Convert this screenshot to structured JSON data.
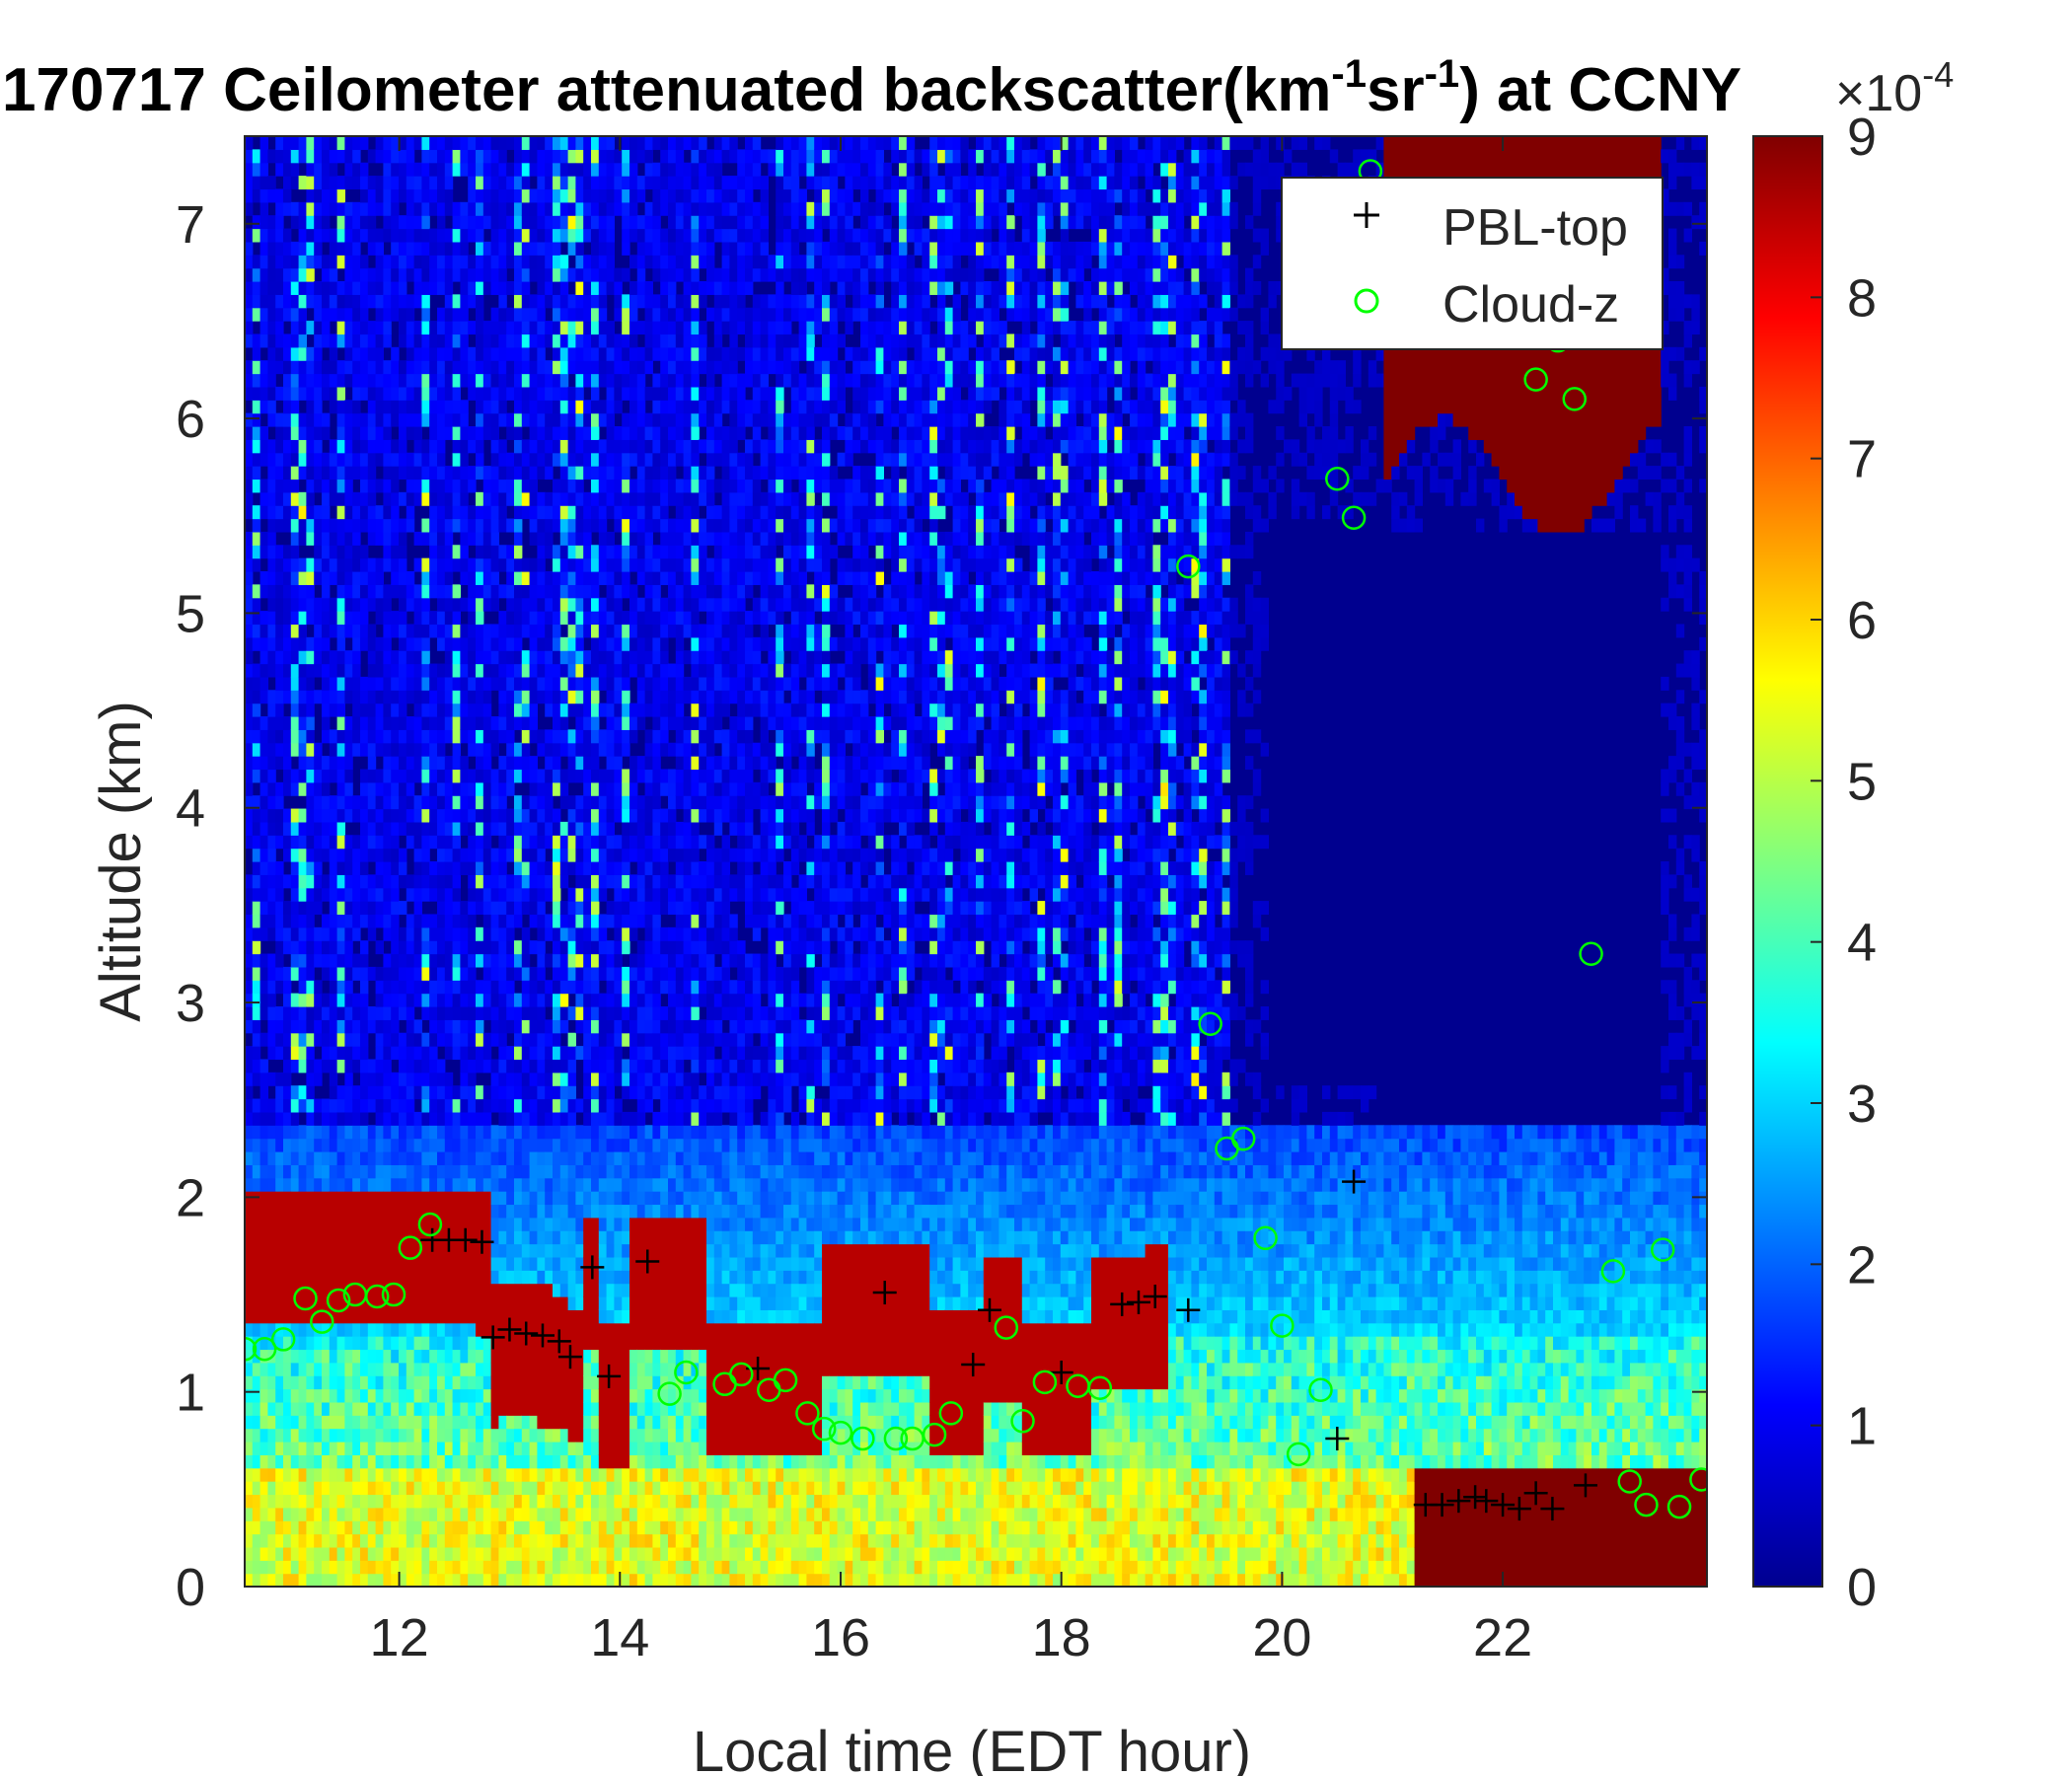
{
  "chart_data": {
    "type": "heatmap",
    "title": {
      "lead": "170717 Ceilometer attenuated backscatter(km",
      "exp1": "-1",
      "mid": "sr",
      "exp2": "-1",
      "tail": ") at CCNY"
    },
    "xlabel": "Local time (EDT hour)",
    "ylabel": "Altitude (km)",
    "xlim": [
      10.6,
      23.85
    ],
    "ylim": [
      0,
      7.45
    ],
    "xticks": [
      "12",
      "14",
      "16",
      "18",
      "20",
      "22"
    ],
    "yticks": [
      "0",
      "1",
      "2",
      "3",
      "4",
      "5",
      "6",
      "7"
    ],
    "colorbar": {
      "colormap": "jet",
      "range": [
        0,
        9
      ],
      "ticks": [
        "0",
        "1",
        "2",
        "3",
        "4",
        "5",
        "6",
        "7",
        "8",
        "9"
      ],
      "multiplier_base": "×10",
      "multiplier_exp": "-4"
    },
    "legend": {
      "position": "top-right",
      "entries": [
        {
          "label": "PBL-top",
          "marker": "+",
          "color": "#000000"
        },
        {
          "label": "Cloud-z",
          "marker": "o",
          "color": "#00ff00"
        }
      ]
    },
    "series": [
      {
        "name": "PBL-top",
        "marker": "+",
        "color": "#000000",
        "points": [
          [
            12.3,
            1.78
          ],
          [
            12.45,
            1.78
          ],
          [
            12.6,
            1.78
          ],
          [
            12.75,
            1.77
          ],
          [
            12.85,
            1.28
          ],
          [
            13.0,
            1.32
          ],
          [
            13.15,
            1.3
          ],
          [
            13.3,
            1.29
          ],
          [
            13.45,
            1.26
          ],
          [
            13.55,
            1.18
          ],
          [
            13.75,
            1.64
          ],
          [
            13.9,
            1.08
          ],
          [
            14.25,
            1.67
          ],
          [
            15.25,
            1.12
          ],
          [
            16.4,
            1.51
          ],
          [
            17.2,
            1.14
          ],
          [
            17.35,
            1.42
          ],
          [
            18.0,
            1.1
          ],
          [
            18.55,
            1.45
          ],
          [
            18.7,
            1.46
          ],
          [
            18.85,
            1.49
          ],
          [
            19.15,
            1.42
          ],
          [
            20.5,
            0.76
          ],
          [
            20.65,
            2.08
          ],
          [
            21.3,
            0.42
          ],
          [
            21.45,
            0.42
          ],
          [
            21.6,
            0.44
          ],
          [
            21.75,
            0.46
          ],
          [
            21.85,
            0.44
          ],
          [
            22.0,
            0.42
          ],
          [
            22.15,
            0.4
          ],
          [
            22.3,
            0.48
          ],
          [
            22.45,
            0.4
          ],
          [
            22.75,
            0.52
          ]
        ]
      },
      {
        "name": "Cloud-z",
        "marker": "o",
        "color": "#00ff00",
        "points": [
          [
            10.6,
            1.22
          ],
          [
            10.78,
            1.22
          ],
          [
            10.95,
            1.27
          ],
          [
            11.15,
            1.48
          ],
          [
            11.3,
            1.36
          ],
          [
            11.45,
            1.47
          ],
          [
            11.6,
            1.5
          ],
          [
            11.8,
            1.49
          ],
          [
            11.95,
            1.5
          ],
          [
            12.1,
            1.74
          ],
          [
            12.28,
            1.86
          ],
          [
            14.45,
            0.99
          ],
          [
            14.6,
            1.1
          ],
          [
            14.95,
            1.04
          ],
          [
            15.1,
            1.09
          ],
          [
            15.35,
            1.01
          ],
          [
            15.5,
            1.06
          ],
          [
            15.7,
            0.89
          ],
          [
            15.85,
            0.81
          ],
          [
            16.0,
            0.79
          ],
          [
            16.2,
            0.76
          ],
          [
            16.5,
            0.76
          ],
          [
            16.65,
            0.76
          ],
          [
            16.85,
            0.78
          ],
          [
            17.0,
            0.89
          ],
          [
            17.5,
            1.33
          ],
          [
            17.65,
            0.85
          ],
          [
            17.85,
            1.05
          ],
          [
            18.15,
            1.03
          ],
          [
            18.35,
            1.02
          ],
          [
            19.15,
            5.24
          ],
          [
            19.35,
            2.89
          ],
          [
            19.5,
            2.25
          ],
          [
            19.65,
            2.3
          ],
          [
            19.85,
            1.79
          ],
          [
            20.0,
            1.34
          ],
          [
            20.15,
            0.68
          ],
          [
            20.35,
            1.01
          ],
          [
            20.5,
            5.69
          ],
          [
            20.65,
            5.49
          ],
          [
            20.8,
            7.27
          ],
          [
            22.3,
            6.2
          ],
          [
            22.5,
            6.4
          ],
          [
            22.65,
            6.1
          ],
          [
            22.8,
            3.25
          ],
          [
            23.0,
            1.62
          ],
          [
            23.15,
            0.54
          ],
          [
            23.3,
            0.42
          ],
          [
            23.45,
            1.73
          ],
          [
            23.6,
            0.41
          ],
          [
            23.8,
            0.55
          ]
        ]
      }
    ]
  }
}
